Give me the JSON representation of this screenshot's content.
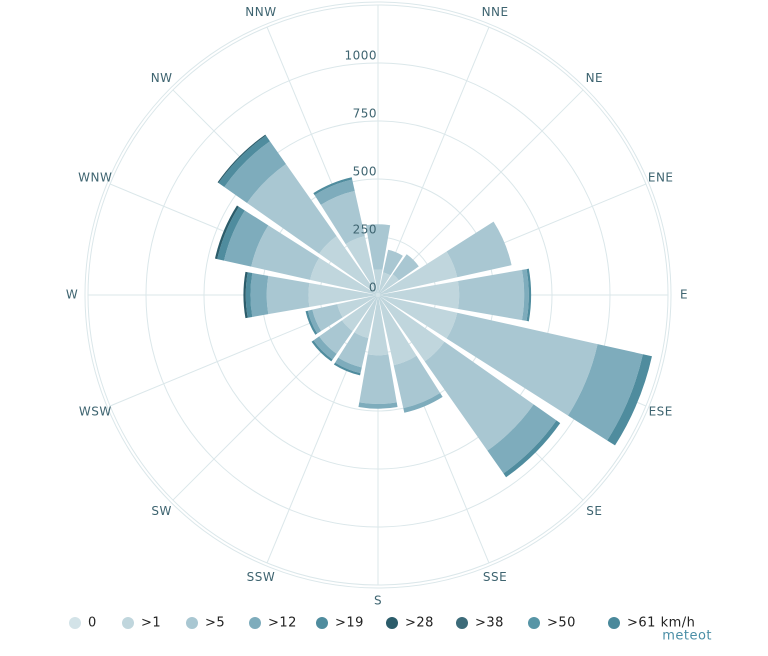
{
  "chart_data": {
    "type": "windrose",
    "categories": [
      null,
      "NNE",
      "NE",
      "ENE",
      "E",
      "ESE",
      "SE",
      "SSE",
      "S",
      "SSW",
      "SW",
      "WSW",
      "W",
      "WNW",
      "NW",
      "NNW"
    ],
    "rlim": [
      0,
      1250
    ],
    "rticks": [
      0,
      250,
      500,
      750,
      1000
    ],
    "grid": true,
    "series": [
      {
        "name": "0",
        "color": "#d3e3e8",
        "values": [
          10,
          10,
          10,
          10,
          10,
          10,
          10,
          10,
          10,
          10,
          10,
          10,
          10,
          10,
          10,
          10
        ]
      },
      {
        "name": ">1",
        "color": "#c0d6dd",
        "values": [
          100,
          90,
          100,
          340,
          340,
          340,
          340,
          300,
          250,
          180,
          180,
          170,
          290,
          290,
          300,
          250
        ]
      },
      {
        "name": ">5",
        "color": "#a9c7d2",
        "values": [
          195,
          100,
          105,
          240,
          280,
          620,
          470,
          190,
          210,
          130,
          120,
          110,
          180,
          260,
          380,
          200
        ]
      },
      {
        "name": ">12",
        "color": "#7eacbc",
        "values": [
          0,
          0,
          0,
          0,
          20,
          200,
          120,
          20,
          20,
          25,
          30,
          20,
          70,
          120,
          120,
          50
        ]
      },
      {
        "name": ">19",
        "color": "#4f8c9e",
        "values": [
          0,
          0,
          0,
          0,
          10,
          40,
          20,
          0,
          0,
          10,
          10,
          10,
          20,
          30,
          30,
          10
        ]
      },
      {
        "name": ">28",
        "color": "#2b5c6a",
        "values": [
          0,
          0,
          0,
          0,
          0,
          0,
          0,
          0,
          0,
          0,
          0,
          0,
          10,
          10,
          5,
          0
        ]
      },
      {
        "name": ">38",
        "color": "#3c6b79",
        "values": [
          0,
          0,
          0,
          0,
          0,
          0,
          0,
          0,
          0,
          0,
          0,
          0,
          0,
          0,
          0,
          0
        ]
      },
      {
        "name": ">50",
        "color": "#5795a6",
        "values": [
          0,
          0,
          0,
          0,
          0,
          0,
          0,
          0,
          0,
          0,
          0,
          0,
          0,
          0,
          0,
          0
        ]
      },
      {
        "name": ">61 km/h",
        "color": "#4a899b",
        "values": [
          0,
          0,
          0,
          0,
          0,
          0,
          0,
          0,
          0,
          0,
          0,
          0,
          0,
          0,
          0,
          0
        ]
      }
    ],
    "logo": "meteot"
  }
}
